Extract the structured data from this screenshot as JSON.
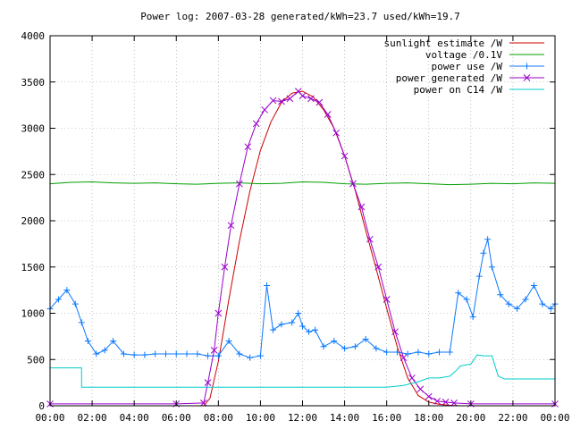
{
  "chart_data": {
    "type": "line",
    "title": "Power log: 2007-03-28 generated/kWh=23.7 used/kWh=19.7",
    "xlabel": "",
    "ylabel": "",
    "xlim": [
      0,
      24
    ],
    "ylim": [
      0,
      4000
    ],
    "x_tick_labels": [
      "00:00",
      "02:00",
      "04:00",
      "06:00",
      "08:00",
      "10:00",
      "12:00",
      "14:00",
      "16:00",
      "18:00",
      "20:00",
      "22:00",
      "00:00"
    ],
    "x_tick_values": [
      0,
      2,
      4,
      6,
      8,
      10,
      12,
      14,
      16,
      18,
      20,
      22,
      24
    ],
    "y_ticks": [
      0,
      500,
      1000,
      1500,
      2000,
      2500,
      3000,
      3500,
      4000
    ],
    "grid": true,
    "legend_position": "top-right",
    "series": [
      {
        "name": "sunlight estimate /W",
        "color": "#cc0000",
        "marker": "none",
        "x": [
          0,
          7.3,
          7.6,
          8,
          8.5,
          9,
          9.5,
          10,
          10.5,
          11,
          11.5,
          12,
          12.5,
          13,
          13.5,
          14,
          14.5,
          15,
          15.5,
          16,
          16.5,
          17,
          17.5,
          18,
          18.5,
          19,
          19.5,
          20,
          24
        ],
        "y": [
          0,
          0,
          80,
          480,
          1150,
          1780,
          2320,
          2760,
          3070,
          3280,
          3380,
          3400,
          3340,
          3200,
          3000,
          2700,
          2330,
          1900,
          1480,
          1050,
          640,
          300,
          110,
          40,
          15,
          5,
          0,
          0,
          0
        ]
      },
      {
        "name": "voltage /0.1V",
        "color": "#00a000",
        "marker": "none",
        "x": [
          0,
          1,
          2,
          3,
          4,
          5,
          6,
          7,
          8,
          9,
          10,
          11,
          12,
          13,
          14,
          15,
          16,
          17,
          18,
          19,
          20,
          21,
          22,
          23,
          24
        ],
        "y": [
          2400,
          2415,
          2420,
          2410,
          2405,
          2410,
          2400,
          2395,
          2405,
          2410,
          2400,
          2405,
          2420,
          2415,
          2400,
          2395,
          2405,
          2410,
          2400,
          2390,
          2395,
          2405,
          2400,
          2410,
          2405
        ]
      },
      {
        "name": "power use /W",
        "color": "#0a78ff",
        "marker": "plus",
        "x": [
          0,
          0.4,
          0.8,
          1.2,
          1.5,
          1.8,
          2.2,
          2.6,
          3,
          3.5,
          4,
          4.5,
          5,
          5.5,
          6,
          6.5,
          7,
          7.5,
          8,
          8.5,
          9,
          9.5,
          10,
          10.3,
          10.6,
          11,
          11.5,
          11.8,
          12,
          12.3,
          12.6,
          13,
          13.5,
          14,
          14.5,
          15,
          15.5,
          16,
          16.5,
          17,
          17.5,
          18,
          18.5,
          19,
          19.4,
          19.8,
          20.1,
          20.4,
          20.6,
          20.8,
          21,
          21.4,
          21.8,
          22.2,
          22.6,
          23,
          23.4,
          23.8,
          24
        ],
        "y": [
          1050,
          1150,
          1250,
          1100,
          900,
          700,
          560,
          600,
          700,
          560,
          550,
          550,
          560,
          560,
          560,
          560,
          560,
          540,
          540,
          700,
          560,
          520,
          540,
          1300,
          820,
          880,
          900,
          1000,
          860,
          800,
          820,
          640,
          700,
          620,
          640,
          720,
          620,
          580,
          580,
          560,
          580,
          560,
          580,
          580,
          1220,
          1150,
          960,
          1400,
          1650,
          1800,
          1500,
          1200,
          1100,
          1050,
          1150,
          1300,
          1100,
          1050,
          1100
        ]
      },
      {
        "name": "power generated /W",
        "color": "#9900cc",
        "marker": "cross",
        "x": [
          0,
          6,
          7.3,
          7.5,
          7.8,
          8,
          8.3,
          8.6,
          9,
          9.4,
          9.8,
          10.2,
          10.6,
          11,
          11.4,
          11.8,
          12,
          12.4,
          12.8,
          13.2,
          13.6,
          14,
          14.4,
          14.8,
          15.2,
          15.6,
          16,
          16.4,
          16.8,
          17.2,
          17.6,
          18,
          18.4,
          18.8,
          19.2,
          20,
          24
        ],
        "y": [
          20,
          20,
          30,
          250,
          600,
          1000,
          1500,
          1950,
          2400,
          2800,
          3050,
          3200,
          3300,
          3290,
          3320,
          3400,
          3350,
          3320,
          3280,
          3150,
          2950,
          2700,
          2400,
          2150,
          1800,
          1500,
          1150,
          800,
          520,
          300,
          180,
          100,
          50,
          40,
          30,
          20,
          20
        ]
      },
      {
        "name": "power on C14 /W",
        "color": "#00cccc",
        "marker": "none",
        "x": [
          0,
          1.5,
          1.5,
          16,
          16.8,
          17.5,
          18,
          18.5,
          19,
          19.3,
          19.5,
          19.7,
          20,
          20.3,
          20.6,
          21,
          21.3,
          21.6,
          22,
          24
        ],
        "y": [
          410,
          410,
          200,
          200,
          220,
          260,
          300,
          300,
          320,
          380,
          430,
          440,
          450,
          550,
          540,
          540,
          320,
          290,
          290,
          290
        ]
      }
    ]
  }
}
